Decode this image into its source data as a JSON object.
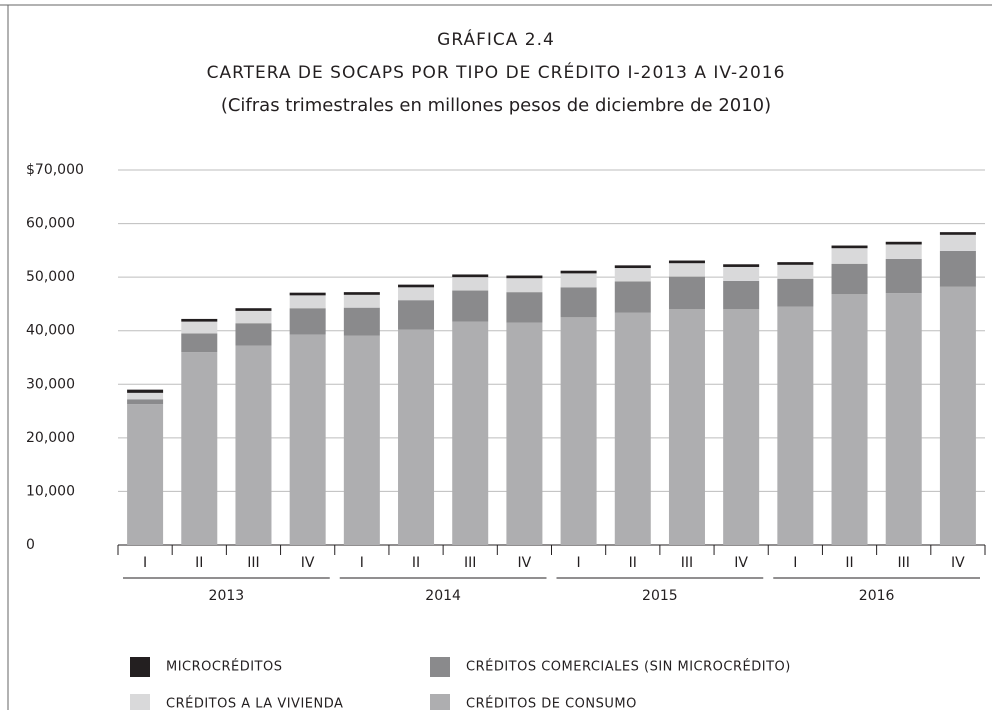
{
  "chart_data": {
    "type": "stacked_bar",
    "title": "GRÁFICA 2.4",
    "subtitle": "CARTERA DE SOCAPS POR TIPO DE CRÉDITO I-2013 A IV-2016",
    "note": "(Cifras trimestrales en millones pesos de diciembre de 2010)",
    "categories": [
      "I",
      "II",
      "III",
      "IV",
      "I",
      "II",
      "III",
      "IV",
      "I",
      "II",
      "III",
      "IV",
      "I",
      "II",
      "III",
      "IV"
    ],
    "years": [
      "2013",
      "2014",
      "2015",
      "2016"
    ],
    "series": [
      {
        "name": "CRÉDITOS DE CONSUMO",
        "color": "#aeaeb0",
        "values": [
          26300,
          36000,
          37200,
          39300,
          39100,
          40200,
          41700,
          41500,
          42500,
          43400,
          44000,
          44000,
          44500,
          46800,
          47000,
          48200
        ]
      },
      {
        "name": "CRÉDITOS COMERCIALES (SIN MICROCRÉDITO)",
        "color": "#8a8a8c",
        "values": [
          900,
          3500,
          4200,
          4900,
          5200,
          5500,
          5800,
          5700,
          5600,
          5800,
          6100,
          5300,
          5200,
          5700,
          6400,
          6700
        ]
      },
      {
        "name": "CRÉDITOS A LA VIVIENDA",
        "color": "#d9d9da",
        "values": [
          1200,
          2200,
          2300,
          2400,
          2400,
          2400,
          2500,
          2600,
          2600,
          2500,
          2500,
          2600,
          2600,
          2900,
          2700,
          3000
        ]
      },
      {
        "name": "MICROCRÉDITOS",
        "color": "#231f20",
        "values": [
          600,
          500,
          500,
          500,
          500,
          500,
          500,
          500,
          500,
          500,
          500,
          500,
          500,
          500,
          500,
          500
        ]
      }
    ],
    "ylim": [
      0,
      70000
    ],
    "yticks": [
      0,
      {
        "value": 10000,
        "label": "10,000"
      },
      {
        "value": 20000,
        "label": "20,000"
      },
      {
        "value": 30000,
        "label": "30,000"
      },
      {
        "value": 40000,
        "label": "40,000"
      },
      {
        "value": 50000,
        "label": "50,000"
      },
      {
        "value": 60000,
        "label": "60,000"
      },
      {
        "value": 70000,
        "label": "$70,000"
      }
    ],
    "grid": true
  }
}
